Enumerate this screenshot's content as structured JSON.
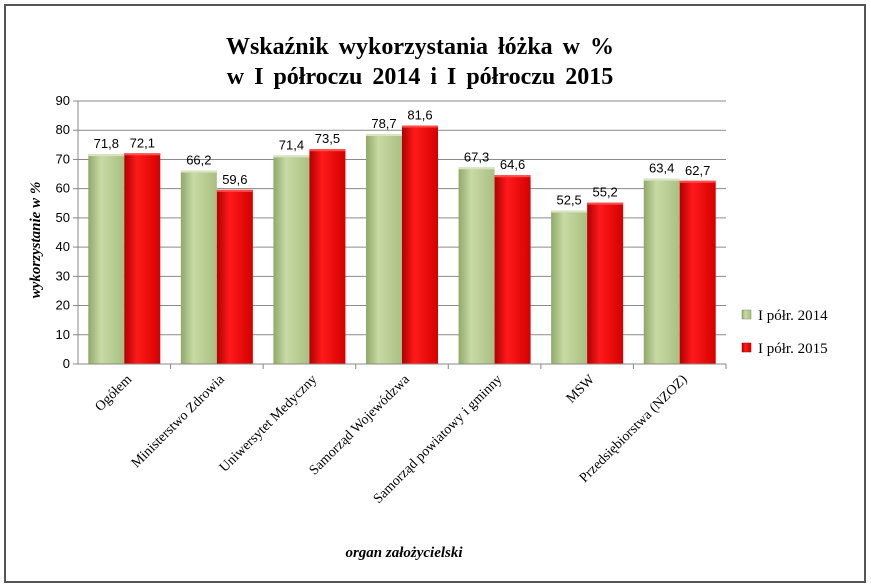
{
  "chart_data": {
    "type": "bar",
    "title_line1": "Wskaźnik  wykorzystania  łóżka  w  %",
    "title_line2": "w I półroczu 2014  i  I półroczu 2015",
    "xlabel": "organ założycielski",
    "ylabel": "wykorzystanie w %",
    "ylim": [
      0,
      90
    ],
    "yticks": [
      0,
      10,
      20,
      30,
      40,
      50,
      60,
      70,
      80,
      90
    ],
    "grid": true,
    "legend_position": "right",
    "categories": [
      "Ogółem",
      "Ministerstwo Zdrowia",
      "Uniwersytet Medyczny",
      "Samorząd Wojewódzwa",
      "Samorząd powiatowy i gminny",
      "MSW",
      "Przedsiębiorstwa (NZOZ)"
    ],
    "series": [
      {
        "name": "I półr. 2014",
        "color": "#b7cc8f",
        "values": [
          71.8,
          66.2,
          71.4,
          78.7,
          67.3,
          52.5,
          63.4
        ],
        "labels": [
          "71,8",
          "66,2",
          "71,4",
          "78,7",
          "67,3",
          "52,5",
          "63,4"
        ]
      },
      {
        "name": "I półr. 2015",
        "color": "#e60000",
        "values": [
          72.1,
          59.6,
          73.5,
          81.6,
          64.6,
          55.2,
          62.7
        ],
        "labels": [
          "72,1",
          "59,6",
          "73,5",
          "81,6",
          "64,6",
          "55,2",
          "62,7"
        ]
      }
    ]
  }
}
